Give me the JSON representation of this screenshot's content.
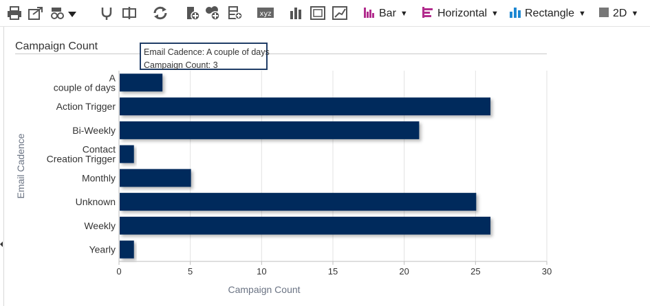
{
  "toolbar": {
    "icons": [
      "print-icon",
      "export-icon",
      "view-options-icon",
      "drill-icon",
      "pivot-icon",
      "refresh-icon",
      "add-calc-icon",
      "add-group-icon",
      "add-filter-icon",
      "xyz-icon",
      "bar-chart-icon",
      "frame-icon",
      "scatter-icon"
    ],
    "xyz_label": "xyz",
    "chart_type": "Bar",
    "orientation": "Horizontal",
    "shape": "Rectangle",
    "dimension": "2D"
  },
  "tooltip": {
    "line1": "Email Cadence: A couple of days",
    "line2": "Campaign Count: 3"
  },
  "chart_data": {
    "type": "bar",
    "orientation": "horizontal",
    "title": "Campaign Count",
    "xlabel": "Campaign Count",
    "ylabel": "Email Cadence",
    "categories": [
      "A couple of days",
      "Action Trigger",
      "Bi-Weekly",
      "Contact Creation Trigger",
      "Monthly",
      "Unknown",
      "Weekly",
      "Yearly"
    ],
    "values": [
      3,
      26,
      21,
      1,
      5,
      25,
      26,
      1
    ],
    "xlim": [
      0,
      30
    ],
    "xticks": [
      0,
      5,
      10,
      15,
      20,
      25,
      30
    ],
    "grid": true,
    "bar_color": "#002b5c"
  }
}
